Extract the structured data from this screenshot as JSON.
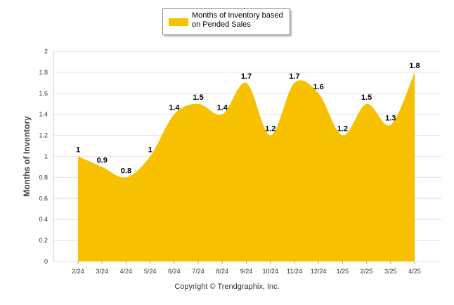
{
  "legend": {
    "label": "Months of Inventory based on Pended Sales"
  },
  "credit": "Copyright © Trendgraphix, Inc.",
  "chart_data": {
    "type": "area",
    "categories": [
      "2/24",
      "3/24",
      "4/24",
      "5/24",
      "6/24",
      "7/24",
      "8/24",
      "9/24",
      "10/24",
      "11/24",
      "12/24",
      "1/25",
      "2/25",
      "3/25",
      "4/25"
    ],
    "series": [
      {
        "name": "Months of Inventory based on Pended Sales",
        "values": [
          1,
          0.9,
          0.8,
          1,
          1.4,
          1.5,
          1.4,
          1.7,
          1.2,
          1.7,
          1.6,
          1.2,
          1.5,
          1.3,
          1.8
        ],
        "labels": [
          "1",
          "0.9",
          "0.8",
          "1",
          "1.4",
          "1.5",
          "1.4",
          "1.7",
          "1.2",
          "1.7",
          "1.6",
          "1.2",
          "1.5",
          "1.3",
          "1.8"
        ]
      }
    ],
    "ylabel": "Months of Inventory",
    "ylim": [
      0,
      2
    ],
    "yticks": [
      "0",
      "0.2",
      "0.4",
      "0.6",
      "0.8",
      "1",
      "1.2",
      "1.4",
      "1.6",
      "1.8",
      "2"
    ],
    "grid": true,
    "legend_position": "top",
    "color": "#f7c000"
  }
}
